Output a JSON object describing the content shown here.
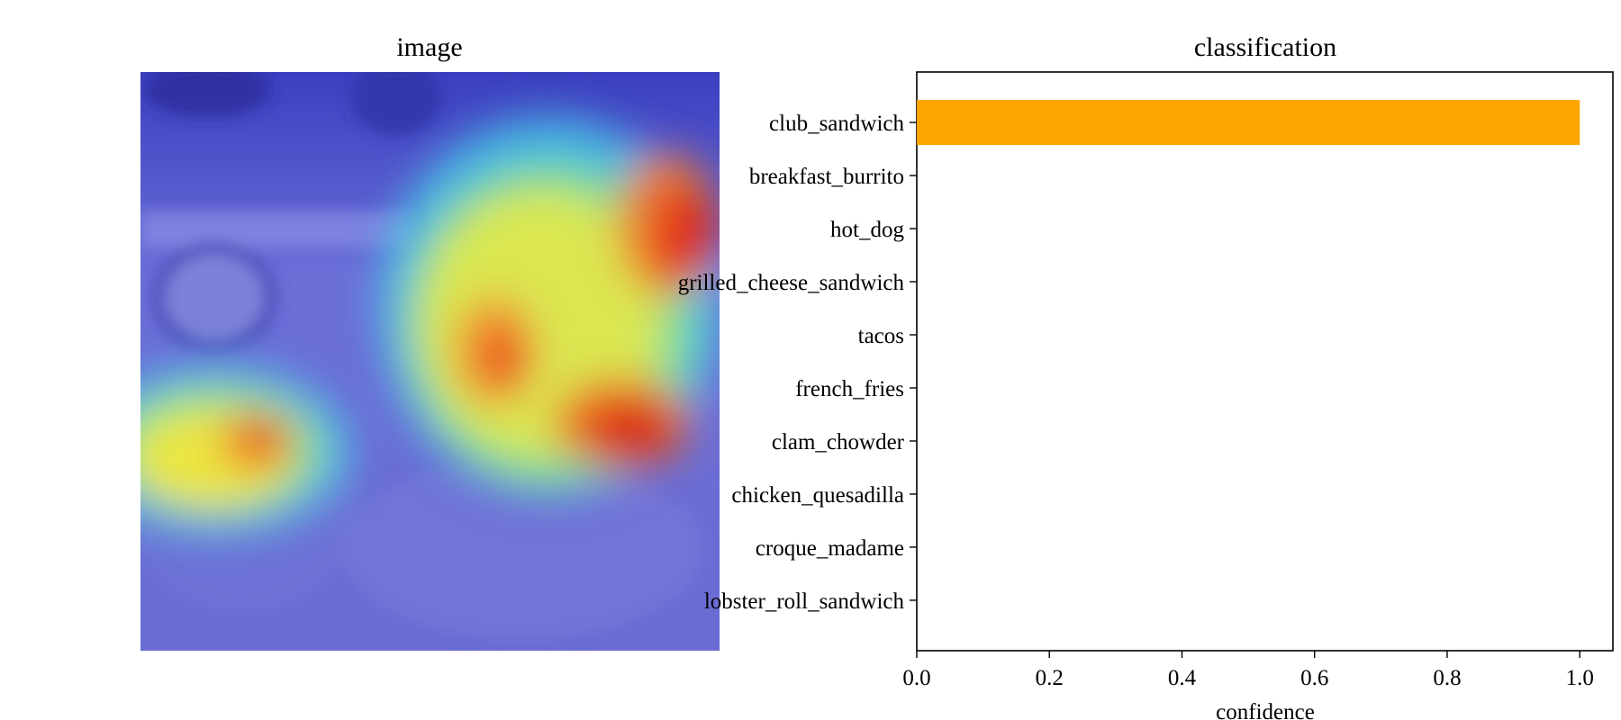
{
  "panels": {
    "image_title": "image",
    "chart_title": "classification"
  },
  "chart_data": {
    "type": "bar",
    "orientation": "horizontal",
    "title": "classification",
    "xlabel": "confidence",
    "ylabel": "",
    "categories": [
      "club_sandwich",
      "breakfast_burrito",
      "hot_dog",
      "grilled_cheese_sandwich",
      "tacos",
      "french_fries",
      "clam_chowder",
      "chicken_quesadilla",
      "croque_madame",
      "lobster_roll_sandwich"
    ],
    "values": [
      1.0,
      0,
      0,
      0,
      0,
      0,
      0,
      0,
      0,
      0
    ],
    "xlim": [
      0,
      1.05
    ],
    "xticks": [
      "0.0",
      "0.2",
      "0.4",
      "0.6",
      "0.8",
      "1.0"
    ],
    "xtick_values": [
      0,
      0.2,
      0.4,
      0.6,
      0.8,
      1.0
    ],
    "bar_color": "#ffa500",
    "grid": false,
    "legend": "none"
  },
  "colors": {
    "heatmap_background": "#5d5fd4",
    "bar": "#ffa500"
  }
}
